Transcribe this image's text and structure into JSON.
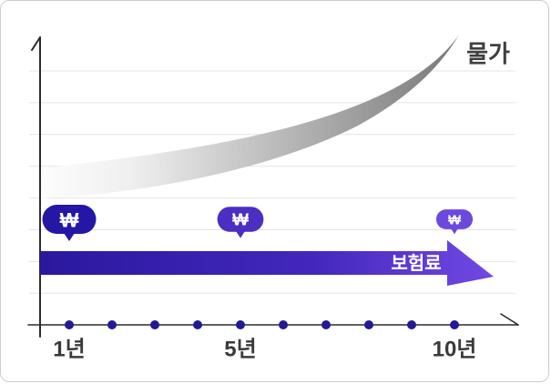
{
  "card": {
    "background": "#ffffff",
    "border_color": "#c9ced3"
  },
  "chart_data": {
    "type": "area",
    "title": "",
    "description": "Conceptual chart: prices (물가) rise exponentially over the years while the insurance premium (보험료) stays flat; the relative value of the won (₩) shrinks over time.",
    "grid": true,
    "gridline_count": 8,
    "gridline_color": "#e4e4e4",
    "axis_color": "#2b2b2b",
    "dot_color": "#221a96",
    "x_years": [
      1,
      2,
      3,
      4,
      5,
      6,
      7,
      8,
      9,
      10
    ],
    "x_tick_labels": [
      {
        "year": 1,
        "label": "1년"
      },
      {
        "year": 5,
        "label": "5년"
      },
      {
        "year": 10,
        "label": "10년"
      }
    ],
    "tick_label_color": "#3a3a3a",
    "series": [
      {
        "name": "물가",
        "label": "물가",
        "label_color": "#3f3f3f",
        "shape": "swoosh-area",
        "trend": "exponential-rising",
        "color_start": "#fcfcfc",
        "color_end": "#787878",
        "relative_values": [
          51,
          52,
          54,
          56,
          59,
          63,
          67,
          73,
          83,
          100
        ]
      },
      {
        "name": "보험료",
        "label": "보험료",
        "label_color": "#ffffff",
        "shape": "flat-arrow",
        "trend": "constant",
        "color_start": "#2a189e",
        "color_end": "#6c44df",
        "relative_values": [
          22,
          22,
          22,
          22,
          22,
          22,
          22,
          22,
          22,
          22
        ]
      }
    ],
    "won_markers": [
      {
        "year": 1,
        "symbol": "₩",
        "color": "#2517a6",
        "relative_size": 1.0
      },
      {
        "year": 5,
        "symbol": "₩",
        "color": "#4b2fc2",
        "relative_size": 0.86
      },
      {
        "year": 10,
        "symbol": "₩",
        "color": "#6a49dc",
        "relative_size": 0.68
      }
    ]
  }
}
